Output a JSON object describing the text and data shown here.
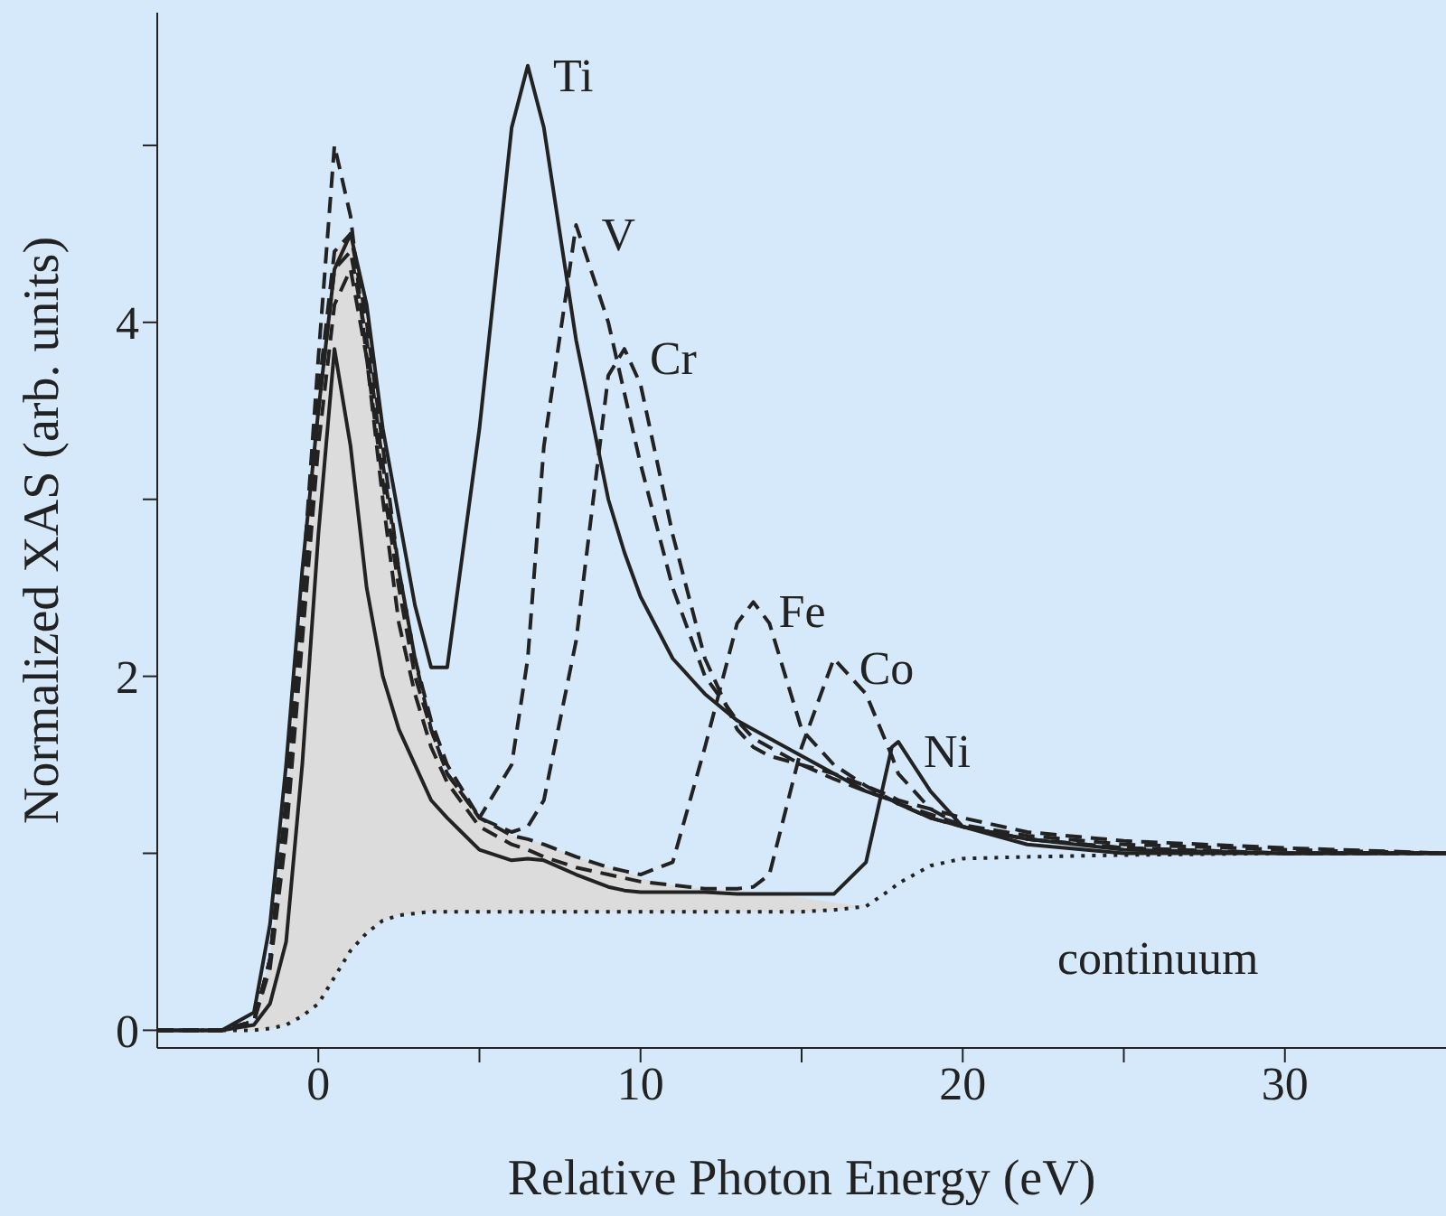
{
  "chart_data": {
    "type": "line",
    "xlabel": "Relative Photon Energy (eV)",
    "ylabel": "Normalized XAS (arb. units)",
    "x": [
      -5,
      -3,
      -2,
      -1.5,
      -1,
      -0.5,
      0,
      0.5,
      1,
      1.5,
      2,
      2.5,
      3,
      3.5,
      4,
      5,
      6,
      6.5,
      7,
      8,
      9,
      9.5,
      10,
      11,
      12,
      13,
      13.5,
      14,
      15,
      16,
      17,
      17.8,
      18,
      19,
      20,
      22,
      25,
      30,
      35
    ],
    "xlim": [
      -5,
      35
    ],
    "xticks": [
      0,
      {
        "value": 5,
        "label": null
      },
      10,
      {
        "value": 15,
        "label": null
      },
      20,
      {
        "value": 25,
        "label": null
      },
      30
    ],
    "ylim": [
      -0.1,
      5.75
    ],
    "yticks": [
      0,
      {
        "value": 1,
        "label": null
      },
      2,
      {
        "value": 3,
        "label": null
      },
      4,
      {
        "value": 5,
        "label": null
      }
    ],
    "series": [
      {
        "name": "Ti",
        "color": "#222222",
        "line_style": "solid",
        "values": [
          0,
          0,
          0.1,
          0.6,
          1.5,
          2.6,
          3.5,
          4.3,
          4.5,
          4.1,
          3.4,
          2.9,
          2.4,
          2.05,
          2.05,
          3.4,
          5.1,
          5.45,
          5.1,
          3.9,
          3.0,
          2.7,
          2.45,
          2.1,
          1.9,
          1.75,
          1.7,
          1.65,
          1.55,
          1.45,
          1.35,
          1.3,
          1.28,
          1.2,
          1.15,
          1.08,
          1.02,
          1.0,
          1.0
        ]
      },
      {
        "name": "V",
        "color": "#222222",
        "line_style": "dashed",
        "values": [
          0,
          0,
          0.05,
          0.4,
          1.3,
          2.5,
          3.8,
          5.0,
          4.6,
          3.8,
          3.1,
          2.5,
          2.0,
          1.7,
          1.45,
          1.2,
          1.5,
          2.1,
          3.3,
          4.55,
          4.0,
          3.6,
          3.2,
          2.5,
          2.0,
          1.75,
          1.65,
          1.6,
          1.5,
          1.42,
          1.35,
          1.3,
          1.28,
          1.22,
          1.16,
          1.1,
          1.05,
          1.02,
          1.0
        ]
      },
      {
        "name": "Cr",
        "color": "#222222",
        "line_style": "dashed",
        "values": [
          0,
          0,
          0.05,
          0.4,
          1.2,
          2.3,
          3.5,
          4.3,
          4.4,
          3.9,
          3.2,
          2.6,
          2.1,
          1.75,
          1.5,
          1.2,
          1.12,
          1.15,
          1.3,
          2.2,
          3.7,
          3.85,
          3.65,
          2.8,
          2.1,
          1.7,
          1.6,
          1.55,
          1.5,
          1.45,
          1.38,
          1.32,
          1.3,
          1.25,
          1.2,
          1.12,
          1.07,
          1.03,
          1.0
        ]
      },
      {
        "name": "Fe",
        "color": "#222222",
        "line_style": "dashed",
        "values": [
          0,
          0,
          0.05,
          0.4,
          1.3,
          2.4,
          3.6,
          4.4,
          4.5,
          4.0,
          3.3,
          2.6,
          2.1,
          1.7,
          1.45,
          1.2,
          1.1,
          1.08,
          1.05,
          0.98,
          0.92,
          0.9,
          0.88,
          0.95,
          1.6,
          2.3,
          2.42,
          2.3,
          1.7,
          1.5,
          1.38,
          1.3,
          1.28,
          1.2,
          1.15,
          1.08,
          1.03,
          1.0,
          1.0
        ]
      },
      {
        "name": "Co",
        "color": "#222222",
        "line_style": "dashed",
        "values": [
          0,
          0,
          0.05,
          0.35,
          1.1,
          2.2,
          3.3,
          4.1,
          4.3,
          3.8,
          3.0,
          2.3,
          1.9,
          1.6,
          1.4,
          1.15,
          1.05,
          1.02,
          0.98,
          0.92,
          0.88,
          0.86,
          0.84,
          0.82,
          0.8,
          0.8,
          0.81,
          0.88,
          1.6,
          2.1,
          1.9,
          1.55,
          1.45,
          1.25,
          1.15,
          1.08,
          1.03,
          1.0,
          1.0
        ]
      },
      {
        "name": "Ni",
        "color": "#222222",
        "line_style": "solid",
        "values": [
          0,
          0,
          0.03,
          0.15,
          0.5,
          1.5,
          2.8,
          3.85,
          3.3,
          2.5,
          2.0,
          1.7,
          1.5,
          1.3,
          1.2,
          1.02,
          0.96,
          0.97,
          0.96,
          0.88,
          0.81,
          0.79,
          0.78,
          0.78,
          0.78,
          0.77,
          0.77,
          0.77,
          0.77,
          0.77,
          0.95,
          1.6,
          1.63,
          1.35,
          1.15,
          1.05,
          1.0,
          1.0,
          1.0
        ]
      },
      {
        "color": "#222222",
        "line_style": "dotted",
        "values": [
          0,
          0,
          0,
          0.01,
          0.03,
          0.08,
          0.15,
          0.3,
          0.45,
          0.55,
          0.62,
          0.65,
          0.66,
          0.67,
          0.67,
          0.67,
          0.67,
          0.67,
          0.67,
          0.67,
          0.67,
          0.67,
          0.67,
          0.67,
          0.67,
          0.67,
          0.67,
          0.67,
          0.67,
          0.68,
          0.7,
          0.8,
          0.83,
          0.93,
          0.97,
          0.98,
          0.99,
          1.0,
          1.0
        ],
        "lower": [
          0,
          0,
          0,
          0.01,
          0.03,
          0.08,
          0.15,
          0.3,
          0.45,
          0.55,
          0.62,
          0.65,
          0.66,
          0.67,
          0.67,
          0.67,
          0.67,
          0.67,
          0.67,
          0.67,
          0.67,
          0.67,
          0.67,
          0.67,
          0.67,
          0.67,
          0.67,
          0.67,
          0.67,
          0.68,
          0.7,
          null,
          null,
          null,
          null,
          null,
          null,
          null,
          null
        ],
        "upper": [
          0,
          0,
          0.05,
          0.4,
          1.3,
          2.4,
          3.6,
          4.4,
          4.5,
          4.0,
          3.3,
          2.6,
          2.1,
          1.7,
          1.45,
          1.2,
          1.1,
          1.08,
          1.05,
          0.98,
          0.92,
          0.9,
          0.86,
          0.82,
          0.8,
          0.79,
          0.78,
          0.77,
          0.75,
          0.72,
          0.7,
          null,
          null,
          null,
          null,
          null,
          null,
          null,
          null
        ]
      }
    ],
    "annotations": [
      "continuum"
    ]
  }
}
